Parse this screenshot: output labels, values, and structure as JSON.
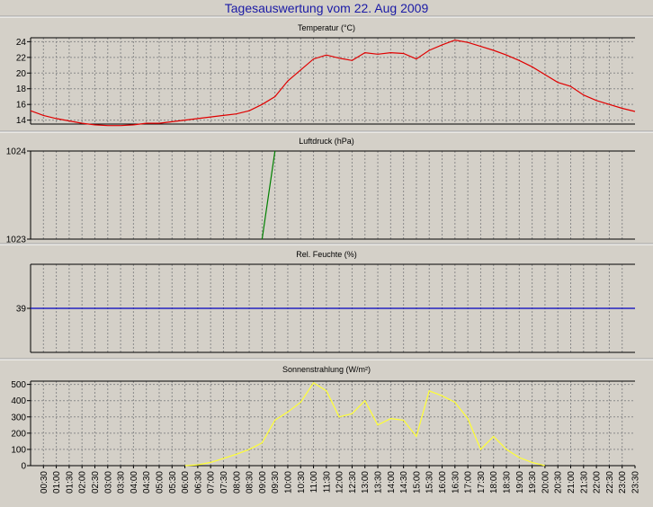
{
  "page_title": "Tagesauswertung vom 22. Aug 2009",
  "colors": {
    "background": "#d4d0c8",
    "title": "#1a1aa6",
    "grid": "#8a8a8a",
    "axis": "#000000",
    "temperature": "#e00000",
    "pressure": "#008000",
    "humidity": "#0000c0",
    "radiation": "#ffff33"
  },
  "x_tick_labels": [
    "00:30",
    "01:00",
    "01:30",
    "02:00",
    "02:30",
    "03:00",
    "03:30",
    "04:00",
    "04:30",
    "05:00",
    "05:30",
    "06:00",
    "06:30",
    "07:00",
    "07:30",
    "08:00",
    "08:30",
    "09:00",
    "09:30",
    "10:00",
    "10:30",
    "11:00",
    "11:30",
    "12:00",
    "12:30",
    "13:00",
    "13:30",
    "14:00",
    "14:30",
    "15:00",
    "15:30",
    "16:00",
    "16:30",
    "17:00",
    "17:30",
    "18:00",
    "18:30",
    "19:00",
    "19:30",
    "20:00",
    "20:30",
    "21:00",
    "21:30",
    "22:00",
    "22:30",
    "23:00",
    "23:30"
  ],
  "chart_data": [
    {
      "type": "line",
      "title": "Temperatur (°C)",
      "xlabel": "",
      "ylabel": "",
      "xlim": [
        "00:00",
        "23:30"
      ],
      "ylim": [
        13.5,
        24.5
      ],
      "y_ticks": [
        14,
        16,
        18,
        20,
        22,
        24
      ],
      "grid": true,
      "x": [
        "00:00",
        "00:30",
        "01:00",
        "01:30",
        "02:00",
        "02:30",
        "03:00",
        "03:30",
        "04:00",
        "04:30",
        "05:00",
        "05:30",
        "06:00",
        "06:30",
        "07:00",
        "07:30",
        "08:00",
        "08:30",
        "09:00",
        "09:30",
        "10:00",
        "10:30",
        "11:00",
        "11:30",
        "12:00",
        "12:30",
        "13:00",
        "13:30",
        "14:00",
        "14:30",
        "15:00",
        "15:30",
        "16:00",
        "16:30",
        "17:00",
        "17:30",
        "18:00",
        "18:30",
        "19:00",
        "19:30",
        "20:00",
        "20:30",
        "21:00",
        "21:30",
        "22:00",
        "22:30",
        "23:00",
        "23:30"
      ],
      "series": [
        {
          "color": "#e00000",
          "values": [
            15.2,
            14.6,
            14.2,
            13.9,
            13.6,
            13.4,
            13.3,
            13.3,
            13.4,
            13.6,
            13.6,
            13.8,
            14.0,
            14.2,
            14.4,
            14.6,
            14.8,
            15.2,
            16.0,
            17.0,
            19.0,
            20.4,
            21.8,
            22.3,
            21.9,
            21.6,
            22.6,
            22.4,
            22.6,
            22.5,
            21.8,
            22.9,
            23.6,
            24.2,
            23.9,
            23.4,
            22.9,
            22.3,
            21.6,
            20.8,
            19.8,
            18.8,
            18.3,
            17.2,
            16.5,
            16.0,
            15.5,
            15.1
          ]
        }
      ]
    },
    {
      "type": "line",
      "title": "Luftdruck (hPa)",
      "xlabel": "",
      "ylabel": "",
      "xlim": [
        "00:00",
        "23:30"
      ],
      "ylim": [
        1023,
        1024
      ],
      "y_ticks": [
        1023,
        1024
      ],
      "grid": true,
      "x": [
        "09:00",
        "09:30"
      ],
      "series": [
        {
          "color": "#008000",
          "values": [
            1023.0,
            1024.0
          ]
        }
      ]
    },
    {
      "type": "line",
      "title": "Rel. Feuchte (%)",
      "xlabel": "",
      "ylabel": "",
      "xlim": [
        "00:00",
        "23:30"
      ],
      "ylim": [
        38,
        40
      ],
      "y_ticks": [
        39
      ],
      "grid": true,
      "x": [
        "00:00",
        "23:30"
      ],
      "series": [
        {
          "color": "#0000c0",
          "values": [
            39,
            39
          ]
        }
      ]
    },
    {
      "type": "line",
      "title": "Sonnenstrahlung (W/m²)",
      "xlabel": "",
      "ylabel": "",
      "xlim": [
        "00:00",
        "23:30"
      ],
      "ylim": [
        0,
        520
      ],
      "y_ticks": [
        0,
        100,
        200,
        300,
        400,
        500
      ],
      "grid": true,
      "x": [
        "06:00",
        "06:30",
        "07:00",
        "07:30",
        "08:00",
        "08:30",
        "09:00",
        "09:30",
        "10:00",
        "10:30",
        "11:00",
        "11:30",
        "12:00",
        "12:30",
        "13:00",
        "13:30",
        "14:00",
        "14:30",
        "15:00",
        "15:30",
        "16:00",
        "16:30",
        "17:00",
        "17:30",
        "18:00",
        "18:30",
        "19:00",
        "19:30",
        "20:00"
      ],
      "series": [
        {
          "color": "#ffff33",
          "values": [
            0,
            5,
            20,
            45,
            70,
            100,
            140,
            280,
            330,
            390,
            510,
            460,
            300,
            320,
            400,
            250,
            290,
            280,
            180,
            460,
            430,
            390,
            290,
            100,
            180,
            100,
            50,
            20,
            0
          ]
        }
      ]
    }
  ]
}
